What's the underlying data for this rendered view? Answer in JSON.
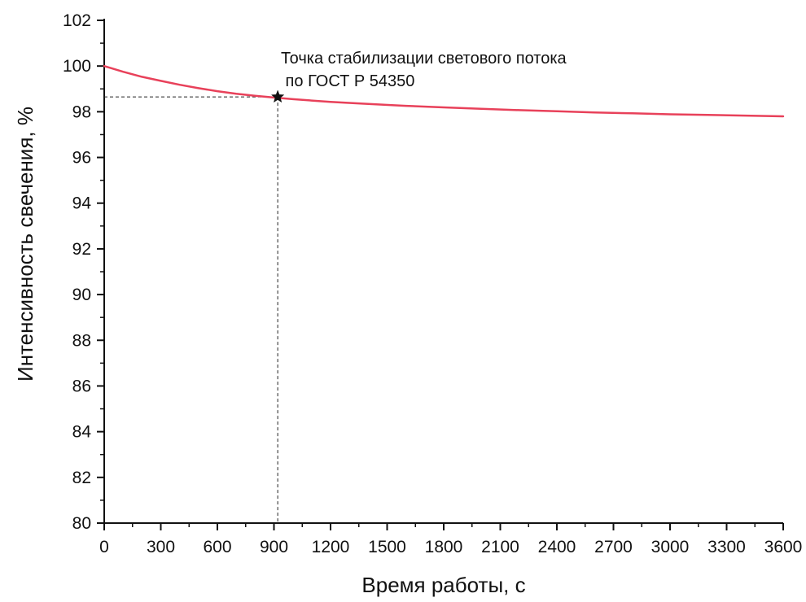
{
  "chart_data": {
    "type": "line",
    "title": "",
    "xlabel": "Время работы, с",
    "ylabel": "Интенсивность свечения, %",
    "xlim": [
      0,
      3600
    ],
    "ylim": [
      80,
      102
    ],
    "x_ticks": [
      0,
      300,
      600,
      900,
      1200,
      1500,
      1800,
      2100,
      2400,
      2700,
      3000,
      3300,
      3600
    ],
    "y_ticks": [
      80,
      82,
      84,
      86,
      88,
      90,
      92,
      94,
      96,
      98,
      100,
      102
    ],
    "grid": false,
    "series": [
      {
        "color": "#e8415a",
        "x": [
          0,
          100,
          200,
          300,
          400,
          500,
          600,
          700,
          800,
          900,
          1000,
          1200,
          1400,
          1600,
          1800,
          2000,
          2200,
          2400,
          2600,
          2800,
          3000,
          3200,
          3400,
          3600
        ],
        "y": [
          100.0,
          99.75,
          99.53,
          99.35,
          99.18,
          99.03,
          98.9,
          98.79,
          98.7,
          98.62,
          98.55,
          98.43,
          98.34,
          98.26,
          98.19,
          98.13,
          98.07,
          98.02,
          97.97,
          97.93,
          97.89,
          97.86,
          97.83,
          97.8
        ]
      }
    ],
    "annotations": [
      {
        "text_line1": "Точка стабилизации светового потока",
        "text_line2": " по ГОСТ Р 54350",
        "x": 920,
        "y": 98.65,
        "marker": "star"
      }
    ]
  }
}
